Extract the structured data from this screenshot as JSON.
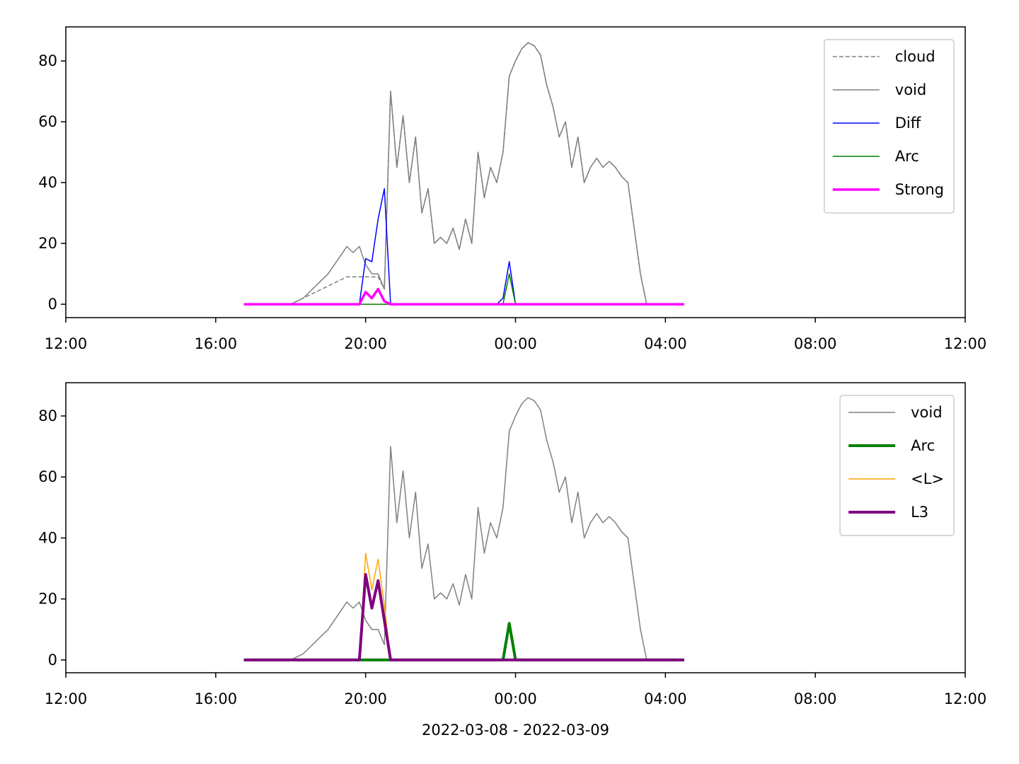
{
  "chart_data": [
    {
      "type": "line",
      "legend": "upper right",
      "xlim": [
        "2022-03-08T12:00",
        "2022-03-09T12:00"
      ],
      "xticks": [
        {
          "value": "2022-03-08T12:00",
          "label": "12:00"
        },
        {
          "value": "2022-03-08T16:00",
          "label": "16:00"
        },
        {
          "value": "2022-03-08T20:00",
          "label": "20:00"
        },
        {
          "value": "2022-03-09T00:00",
          "label": "00:00"
        },
        {
          "value": "2022-03-09T04:00",
          "label": "04:00"
        },
        {
          "value": "2022-03-09T08:00",
          "label": "08:00"
        },
        {
          "value": "2022-03-09T12:00",
          "label": "12:00"
        }
      ],
      "ylim": [
        -4.4,
        91.2
      ],
      "yticks": [
        0,
        20,
        40,
        60,
        80
      ],
      "x": [
        "2022-03-08T16:45",
        "2022-03-08T17:00",
        "2022-03-08T17:10",
        "2022-03-08T17:20",
        "2022-03-08T17:30",
        "2022-03-08T17:40",
        "2022-03-08T17:50",
        "2022-03-08T18:00",
        "2022-03-08T18:10",
        "2022-03-08T18:20",
        "2022-03-08T18:30",
        "2022-03-08T18:40",
        "2022-03-08T18:50",
        "2022-03-08T19:00",
        "2022-03-08T19:10",
        "2022-03-08T19:20",
        "2022-03-08T19:30",
        "2022-03-08T19:40",
        "2022-03-08T19:50",
        "2022-03-08T20:00",
        "2022-03-08T20:10",
        "2022-03-08T20:20",
        "2022-03-08T20:30",
        "2022-03-08T20:40",
        "2022-03-08T20:50",
        "2022-03-08T21:00",
        "2022-03-08T21:10",
        "2022-03-08T21:20",
        "2022-03-08T21:30",
        "2022-03-08T21:40",
        "2022-03-08T21:50",
        "2022-03-08T22:00",
        "2022-03-08T22:10",
        "2022-03-08T22:20",
        "2022-03-08T22:30",
        "2022-03-08T22:40",
        "2022-03-08T22:50",
        "2022-03-08T23:00",
        "2022-03-08T23:10",
        "2022-03-08T23:20",
        "2022-03-08T23:30",
        "2022-03-08T23:40",
        "2022-03-08T23:50",
        "2022-03-09T00:00",
        "2022-03-09T00:10",
        "2022-03-09T00:20",
        "2022-03-09T00:30",
        "2022-03-09T00:40",
        "2022-03-09T00:50",
        "2022-03-09T01:00",
        "2022-03-09T01:10",
        "2022-03-09T01:20",
        "2022-03-09T01:30",
        "2022-03-09T01:40",
        "2022-03-09T01:50",
        "2022-03-09T02:00",
        "2022-03-09T02:10",
        "2022-03-09T02:20",
        "2022-03-09T02:30",
        "2022-03-09T02:40",
        "2022-03-09T02:50",
        "2022-03-09T03:00",
        "2022-03-09T03:10",
        "2022-03-09T03:20",
        "2022-03-09T03:30",
        "2022-03-09T03:40",
        "2022-03-09T03:50",
        "2022-03-09T04:00",
        "2022-03-09T04:10",
        "2022-03-09T04:20",
        "2022-03-09T04:30"
      ],
      "series": [
        {
          "name": "cloud",
          "color": "#808080",
          "dashed": true,
          "width": 1.5,
          "values": [
            0,
            0,
            0,
            0,
            0,
            0,
            0,
            0,
            1,
            2,
            3,
            4,
            5,
            6,
            7,
            8,
            9,
            9,
            9,
            9,
            9,
            9,
            5,
            70,
            45,
            62,
            40,
            55,
            30,
            38,
            20,
            22,
            20,
            25,
            18,
            28,
            20,
            50,
            35,
            45,
            40,
            50,
            75,
            80,
            84,
            86,
            85,
            82,
            72,
            65,
            55,
            60,
            45,
            55,
            40,
            45,
            48,
            45,
            47,
            45,
            42,
            40,
            25,
            10,
            0,
            0,
            0,
            0,
            0,
            0,
            0
          ]
        },
        {
          "name": "void",
          "color": "#808080",
          "width": 1.5,
          "values": [
            0,
            0,
            0,
            0,
            0,
            0,
            0,
            0,
            1,
            2,
            4,
            6,
            8,
            10,
            13,
            16,
            19,
            17,
            19,
            13,
            10,
            10,
            5,
            70,
            45,
            62,
            40,
            55,
            30,
            38,
            20,
            22,
            20,
            25,
            18,
            28,
            20,
            50,
            35,
            45,
            40,
            50,
            75,
            80,
            84,
            86,
            85,
            82,
            72,
            65,
            55,
            60,
            45,
            55,
            40,
            45,
            48,
            45,
            47,
            45,
            42,
            40,
            25,
            10,
            0,
            0,
            0,
            0,
            0,
            0,
            0
          ]
        },
        {
          "name": "Diff",
          "color": "#0000ff",
          "width": 1.5,
          "values": [
            0,
            0,
            0,
            0,
            0,
            0,
            0,
            0,
            0,
            0,
            0,
            0,
            0,
            0,
            0,
            0,
            0,
            0,
            0,
            15,
            14,
            28,
            38,
            0,
            0,
            0,
            0,
            0,
            0,
            0,
            0,
            0,
            0,
            0,
            0,
            0,
            0,
            0,
            0,
            0,
            0,
            2,
            14,
            0,
            0,
            0,
            0,
            0,
            0,
            0,
            0,
            0,
            0,
            0,
            0,
            0,
            0,
            0,
            0,
            0,
            0,
            0,
            0,
            0,
            0,
            0,
            0,
            0,
            0,
            0,
            0
          ]
        },
        {
          "name": "Arc",
          "color": "#008000",
          "width": 1.5,
          "values": [
            0,
            0,
            0,
            0,
            0,
            0,
            0,
            0,
            0,
            0,
            0,
            0,
            0,
            0,
            0,
            0,
            0,
            0,
            0,
            0,
            0,
            0,
            0,
            0,
            0,
            0,
            0,
            0,
            0,
            0,
            0,
            0,
            0,
            0,
            0,
            0,
            0,
            0,
            0,
            0,
            0,
            0,
            10,
            0,
            0,
            0,
            0,
            0,
            0,
            0,
            0,
            0,
            0,
            0,
            0,
            0,
            0,
            0,
            0,
            0,
            0,
            0,
            0,
            0,
            0,
            0,
            0,
            0,
            0,
            0,
            0
          ]
        },
        {
          "name": "Strong",
          "color": "#ff00ff",
          "width": 3.5,
          "values": [
            0,
            0,
            0,
            0,
            0,
            0,
            0,
            0,
            0,
            0,
            0,
            0,
            0,
            0,
            0,
            0,
            0,
            0,
            0,
            4,
            2,
            5,
            1,
            0,
            0,
            0,
            0,
            0,
            0,
            0,
            0,
            0,
            0,
            0,
            0,
            0,
            0,
            0,
            0,
            0,
            0,
            0,
            0,
            0,
            0,
            0,
            0,
            0,
            0,
            0,
            0,
            0,
            0,
            0,
            0,
            0,
            0,
            0,
            0,
            0,
            0,
            0,
            0,
            0,
            0,
            0,
            0,
            0,
            0,
            0,
            0
          ]
        }
      ]
    },
    {
      "type": "line",
      "legend": "upper right",
      "xlabel": "2022-03-08 - 2022-03-09",
      "xlim": [
        "2022-03-08T12:00",
        "2022-03-09T12:00"
      ],
      "xticks": [
        {
          "value": "2022-03-08T12:00",
          "label": "12:00"
        },
        {
          "value": "2022-03-08T16:00",
          "label": "16:00"
        },
        {
          "value": "2022-03-08T20:00",
          "label": "20:00"
        },
        {
          "value": "2022-03-09T00:00",
          "label": "00:00"
        },
        {
          "value": "2022-03-09T04:00",
          "label": "04:00"
        },
        {
          "value": "2022-03-09T08:00",
          "label": "08:00"
        },
        {
          "value": "2022-03-09T12:00",
          "label": "12:00"
        }
      ],
      "ylim": [
        -4.2,
        90.9
      ],
      "yticks": [
        0,
        20,
        40,
        60,
        80
      ],
      "x": [
        "2022-03-08T16:45",
        "2022-03-08T17:00",
        "2022-03-08T17:10",
        "2022-03-08T17:20",
        "2022-03-08T17:30",
        "2022-03-08T17:40",
        "2022-03-08T17:50",
        "2022-03-08T18:00",
        "2022-03-08T18:10",
        "2022-03-08T18:20",
        "2022-03-08T18:30",
        "2022-03-08T18:40",
        "2022-03-08T18:50",
        "2022-03-08T19:00",
        "2022-03-08T19:10",
        "2022-03-08T19:20",
        "2022-03-08T19:30",
        "2022-03-08T19:40",
        "2022-03-08T19:50",
        "2022-03-08T20:00",
        "2022-03-08T20:10",
        "2022-03-08T20:20",
        "2022-03-08T20:30",
        "2022-03-08T20:40",
        "2022-03-08T20:50",
        "2022-03-08T21:00",
        "2022-03-08T21:10",
        "2022-03-08T21:20",
        "2022-03-08T21:30",
        "2022-03-08T21:40",
        "2022-03-08T21:50",
        "2022-03-08T22:00",
        "2022-03-08T22:10",
        "2022-03-08T22:20",
        "2022-03-08T22:30",
        "2022-03-08T22:40",
        "2022-03-08T22:50",
        "2022-03-08T23:00",
        "2022-03-08T23:10",
        "2022-03-08T23:20",
        "2022-03-08T23:30",
        "2022-03-08T23:40",
        "2022-03-08T23:50",
        "2022-03-09T00:00",
        "2022-03-09T00:10",
        "2022-03-09T00:20",
        "2022-03-09T00:30",
        "2022-03-09T00:40",
        "2022-03-09T00:50",
        "2022-03-09T01:00",
        "2022-03-09T01:10",
        "2022-03-09T01:20",
        "2022-03-09T01:30",
        "2022-03-09T01:40",
        "2022-03-09T01:50",
        "2022-03-09T02:00",
        "2022-03-09T02:10",
        "2022-03-09T02:20",
        "2022-03-09T02:30",
        "2022-03-09T02:40",
        "2022-03-09T02:50",
        "2022-03-09T03:00",
        "2022-03-09T03:10",
        "2022-03-09T03:20",
        "2022-03-09T03:30",
        "2022-03-09T03:40",
        "2022-03-09T03:50",
        "2022-03-09T04:00",
        "2022-03-09T04:10",
        "2022-03-09T04:20",
        "2022-03-09T04:30"
      ],
      "series": [
        {
          "name": "void",
          "color": "#808080",
          "width": 1.5,
          "values": [
            0,
            0,
            0,
            0,
            0,
            0,
            0,
            0,
            1,
            2,
            4,
            6,
            8,
            10,
            13,
            16,
            19,
            17,
            19,
            13,
            10,
            10,
            5,
            70,
            45,
            62,
            40,
            55,
            30,
            38,
            20,
            22,
            20,
            25,
            18,
            28,
            20,
            50,
            35,
            45,
            40,
            50,
            75,
            80,
            84,
            86,
            85,
            82,
            72,
            65,
            55,
            60,
            45,
            55,
            40,
            45,
            48,
            45,
            47,
            45,
            42,
            40,
            25,
            10,
            0,
            0,
            0,
            0,
            0,
            0,
            0
          ]
        },
        {
          "name": "Arc",
          "color": "#008000",
          "width": 4,
          "values": [
            0,
            0,
            0,
            0,
            0,
            0,
            0,
            0,
            0,
            0,
            0,
            0,
            0,
            0,
            0,
            0,
            0,
            0,
            0,
            0,
            0,
            0,
            0,
            0,
            0,
            0,
            0,
            0,
            0,
            0,
            0,
            0,
            0,
            0,
            0,
            0,
            0,
            0,
            0,
            0,
            0,
            0,
            12,
            0,
            0,
            0,
            0,
            0,
            0,
            0,
            0,
            0,
            0,
            0,
            0,
            0,
            0,
            0,
            0,
            0,
            0,
            0,
            0,
            0,
            0,
            0,
            0,
            0,
            0,
            0,
            0
          ]
        },
        {
          "name": "<L>",
          "color": "#ffa500",
          "width": 1.5,
          "values": [
            0,
            0,
            0,
            0,
            0,
            0,
            0,
            0,
            0,
            0,
            0,
            0,
            0,
            0,
            0,
            0,
            0,
            0,
            0,
            35,
            23,
            33,
            18,
            0,
            0,
            0,
            0,
            0,
            0,
            0,
            0,
            0,
            0,
            0,
            0,
            0,
            0,
            0,
            0,
            0,
            0,
            0,
            0,
            0,
            0,
            0,
            0,
            0,
            0,
            0,
            0,
            0,
            0,
            0,
            0,
            0,
            0,
            0,
            0,
            0,
            0,
            0,
            0,
            0,
            0,
            0,
            0,
            0,
            0,
            0,
            0
          ]
        },
        {
          "name": "L3",
          "color": "#800080",
          "width": 4,
          "values": [
            0,
            0,
            0,
            0,
            0,
            0,
            0,
            0,
            0,
            0,
            0,
            0,
            0,
            0,
            0,
            0,
            0,
            0,
            0,
            28,
            17,
            26,
            13,
            0,
            0,
            0,
            0,
            0,
            0,
            0,
            0,
            0,
            0,
            0,
            0,
            0,
            0,
            0,
            0,
            0,
            0,
            0,
            0,
            0,
            0,
            0,
            0,
            0,
            0,
            0,
            0,
            0,
            0,
            0,
            0,
            0,
            0,
            0,
            0,
            0,
            0,
            0,
            0,
            0,
            0,
            0,
            0,
            0,
            0,
            0,
            0
          ]
        }
      ]
    }
  ]
}
